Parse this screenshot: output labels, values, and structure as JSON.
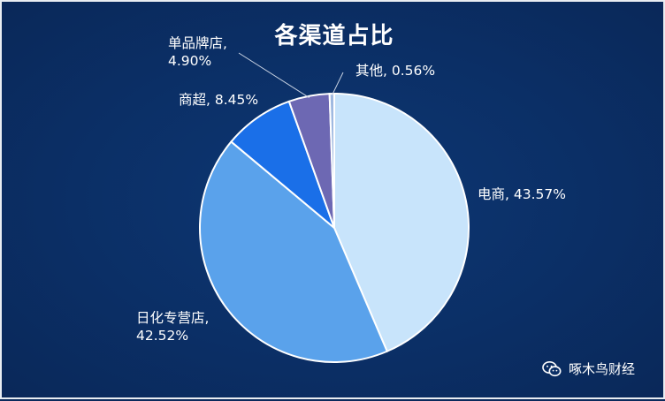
{
  "chart_data": {
    "type": "pie",
    "title": "各渠道占比",
    "slices": [
      {
        "name": "电商",
        "value": 43.57,
        "label": "电商, 43.57%",
        "color": "#c8e4fb"
      },
      {
        "name": "日化专营店",
        "value": 42.52,
        "label_line1": "日化专营店,",
        "label_line2": "42.52%",
        "color": "#5aa2eb"
      },
      {
        "name": "商超",
        "value": 8.45,
        "label": "商超, 8.45%",
        "color": "#1a6fe8"
      },
      {
        "name": "单品牌店",
        "value": 4.9,
        "label_line1": "单品牌店,",
        "label_line2": "4.90%",
        "color": "#6d68b3"
      },
      {
        "name": "其他",
        "value": 0.56,
        "label": "其他, 0.56%",
        "color": "#9fb9e0"
      }
    ],
    "start": "12 o'clock",
    "direction": "clockwise"
  },
  "watermark": {
    "text": "啄木鸟财经",
    "icon": "wechat-icon"
  }
}
